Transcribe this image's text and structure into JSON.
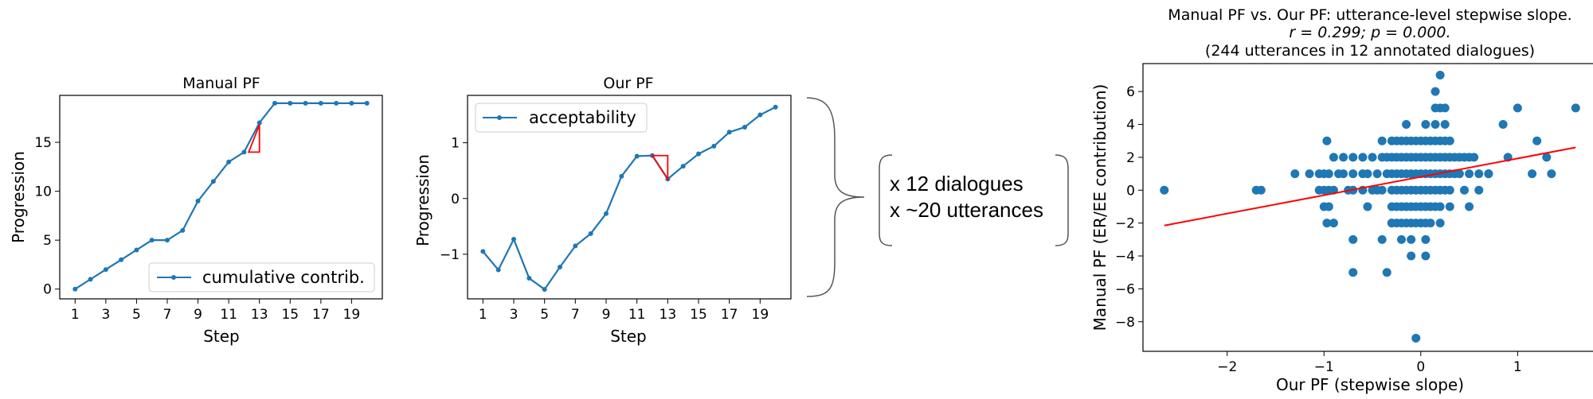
{
  "colors": {
    "series": "#1f77b4",
    "trend": "#ff0000",
    "axis": "#000000",
    "brace": "#555555"
  },
  "chart_data": [
    {
      "type": "line",
      "title": "Manual PF",
      "xlabel": "Step",
      "ylabel": "Progression",
      "xlim": [
        0,
        21
      ],
      "ylim": [
        -1,
        19.8
      ],
      "xticks": [
        1,
        3,
        5,
        7,
        9,
        11,
        13,
        15,
        17,
        19
      ],
      "yticks": [
        0,
        5,
        10,
        15
      ],
      "grid": false,
      "legend_position": "lower-right",
      "series": [
        {
          "name": "cumulative contrib.",
          "x": [
            1,
            2,
            3,
            4,
            5,
            6,
            7,
            8,
            9,
            10,
            11,
            12,
            13,
            14,
            15,
            16,
            17,
            18,
            19,
            20
          ],
          "values": [
            0,
            1,
            2,
            3,
            4,
            5,
            5,
            6,
            9,
            11,
            13,
            14,
            17,
            19,
            19,
            19,
            19,
            19,
            19,
            19
          ]
        }
      ],
      "annotation_triangle": [
        [
          12.3,
          14
        ],
        [
          13,
          14
        ],
        [
          13,
          16.8
        ]
      ]
    },
    {
      "type": "line",
      "title": "Our PF",
      "xlabel": "Step",
      "ylabel": "Progression",
      "xlim": [
        0,
        21
      ],
      "ylim": [
        -1.8,
        1.85
      ],
      "xticks": [
        1,
        3,
        5,
        7,
        9,
        11,
        13,
        15,
        17,
        19
      ],
      "yticks": [
        -1,
        0,
        1
      ],
      "grid": false,
      "legend_position": "upper-left",
      "series": [
        {
          "name": "acceptability",
          "x": [
            1,
            2,
            3,
            4,
            5,
            6,
            7,
            8,
            9,
            10,
            11,
            12,
            13,
            14,
            15,
            16,
            17,
            18,
            19,
            20
          ],
          "values": [
            -0.95,
            -1.28,
            -0.73,
            -1.43,
            -1.63,
            -1.23,
            -0.85,
            -0.63,
            -0.27,
            0.4,
            0.76,
            0.77,
            0.35,
            0.58,
            0.8,
            0.94,
            1.19,
            1.28,
            1.5,
            1.64
          ]
        }
      ],
      "annotation_triangle": [
        [
          12,
          0.77
        ],
        [
          13,
          0.77
        ],
        [
          13,
          0.35
        ]
      ]
    },
    {
      "type": "scatter",
      "title": "Manual PF vs. Our PF: utterance-level stepwise slope.",
      "title_stats": "r = 0.299;  p = 0.000.",
      "title_note": "(244 utterances in 12 annotated dialogues)",
      "xlabel": "Our PF (stepwise slope)",
      "ylabel": "Manual PF (ER/EE contribution)",
      "xlim": [
        -2.87,
        1.82
      ],
      "ylim": [
        -9.8,
        7.7
      ],
      "xticks": [
        -2,
        -1,
        0,
        1
      ],
      "yticks": [
        -8,
        -6,
        -4,
        -2,
        0,
        2,
        4,
        6
      ],
      "grid": false,
      "trend_line": {
        "x": [
          -2.65,
          1.6
        ],
        "y": [
          -2.15,
          2.6
        ]
      },
      "points": [
        [
          -2.65,
          0
        ],
        [
          -1.7,
          0
        ],
        [
          -1.65,
          0
        ],
        [
          -1.3,
          1
        ],
        [
          -1.15,
          1
        ],
        [
          -1.05,
          1
        ],
        [
          -1.0,
          1
        ],
        [
          -0.95,
          1
        ],
        [
          -1.0,
          0
        ],
        [
          -0.95,
          0
        ],
        [
          -0.9,
          0
        ],
        [
          -1.05,
          0
        ],
        [
          -1.0,
          -1
        ],
        [
          -0.95,
          -1
        ],
        [
          -0.97,
          -2
        ],
        [
          -0.9,
          -2
        ],
        [
          -0.97,
          3
        ],
        [
          -0.9,
          2
        ],
        [
          -0.85,
          1
        ],
        [
          -0.8,
          1
        ],
        [
          -0.7,
          1
        ],
        [
          -0.75,
          0
        ],
        [
          -0.7,
          0
        ],
        [
          -0.6,
          0
        ],
        [
          -0.5,
          0
        ],
        [
          -0.8,
          2
        ],
        [
          -0.7,
          2
        ],
        [
          -0.6,
          2
        ],
        [
          -0.5,
          2
        ],
        [
          -0.7,
          -3
        ],
        [
          -0.7,
          -5
        ],
        [
          -0.6,
          1
        ],
        [
          -0.55,
          1
        ],
        [
          -0.45,
          1
        ],
        [
          -0.35,
          1
        ],
        [
          -0.55,
          -1
        ],
        [
          -0.45,
          0
        ],
        [
          -0.4,
          0
        ],
        [
          -0.4,
          3
        ],
        [
          -0.4,
          2
        ],
        [
          -0.35,
          2
        ],
        [
          -0.3,
          2
        ],
        [
          -0.3,
          1
        ],
        [
          -0.25,
          1
        ],
        [
          -0.2,
          1
        ],
        [
          -0.15,
          1
        ],
        [
          -0.1,
          1
        ],
        [
          -0.05,
          1
        ],
        [
          0.0,
          1
        ],
        [
          0.05,
          1
        ],
        [
          0.1,
          1
        ],
        [
          0.15,
          1
        ],
        [
          0.2,
          1
        ],
        [
          0.25,
          1
        ],
        [
          0.3,
          1
        ],
        [
          0.35,
          1
        ],
        [
          0.4,
          1
        ],
        [
          0.5,
          1
        ],
        [
          0.6,
          1
        ],
        [
          0.7,
          1
        ],
        [
          -0.3,
          0
        ],
        [
          -0.25,
          0
        ],
        [
          -0.2,
          0
        ],
        [
          -0.15,
          0
        ],
        [
          -0.1,
          0
        ],
        [
          -0.05,
          0
        ],
        [
          0.0,
          0
        ],
        [
          0.05,
          0
        ],
        [
          0.1,
          0
        ],
        [
          0.15,
          0
        ],
        [
          0.2,
          0
        ],
        [
          0.25,
          0
        ],
        [
          0.3,
          0
        ],
        [
          0.45,
          0
        ],
        [
          -0.3,
          -1
        ],
        [
          -0.25,
          -1
        ],
        [
          -0.2,
          -1
        ],
        [
          -0.15,
          -1
        ],
        [
          -0.1,
          -1
        ],
        [
          -0.05,
          -1
        ],
        [
          0.0,
          -1
        ],
        [
          0.05,
          -1
        ],
        [
          0.1,
          -1
        ],
        [
          0.15,
          -1
        ],
        [
          0.2,
          -1
        ],
        [
          0.3,
          -1
        ],
        [
          -0.3,
          -2
        ],
        [
          -0.25,
          -2
        ],
        [
          -0.2,
          -2
        ],
        [
          -0.15,
          -2
        ],
        [
          -0.1,
          -2
        ],
        [
          -0.05,
          -2
        ],
        [
          0.0,
          -2
        ],
        [
          0.05,
          -2
        ],
        [
          0.1,
          -2
        ],
        [
          0.2,
          -2
        ],
        [
          -0.4,
          -3
        ],
        [
          -0.2,
          -3
        ],
        [
          -0.1,
          -3
        ],
        [
          0.05,
          -3
        ],
        [
          -0.1,
          -4
        ],
        [
          0.05,
          -4
        ],
        [
          -0.35,
          -5
        ],
        [
          -0.3,
          -2
        ],
        [
          -0.3,
          3
        ],
        [
          -0.25,
          3
        ],
        [
          -0.2,
          3
        ],
        [
          -0.15,
          3
        ],
        [
          -0.1,
          3
        ],
        [
          -0.05,
          3
        ],
        [
          0.0,
          3
        ],
        [
          0.05,
          3
        ],
        [
          0.1,
          3
        ],
        [
          0.15,
          3
        ],
        [
          0.2,
          3
        ],
        [
          0.25,
          3
        ],
        [
          0.3,
          3
        ],
        [
          -0.25,
          2
        ],
        [
          -0.2,
          2
        ],
        [
          -0.15,
          2
        ],
        [
          -0.1,
          2
        ],
        [
          -0.05,
          2
        ],
        [
          0.0,
          2
        ],
        [
          0.05,
          2
        ],
        [
          0.1,
          2
        ],
        [
          0.15,
          2
        ],
        [
          0.2,
          2
        ],
        [
          0.25,
          2
        ],
        [
          0.3,
          2
        ],
        [
          0.35,
          2
        ],
        [
          0.4,
          2
        ],
        [
          0.45,
          2
        ],
        [
          0.5,
          2
        ],
        [
          0.55,
          2
        ],
        [
          -0.15,
          4
        ],
        [
          0.05,
          4
        ],
        [
          0.15,
          4
        ],
        [
          0.25,
          4
        ],
        [
          0.15,
          5
        ],
        [
          0.2,
          5
        ],
        [
          0.25,
          5
        ],
        [
          0.15,
          6
        ],
        [
          0.2,
          7
        ],
        [
          -0.05,
          -9
        ],
        [
          0.5,
          -1
        ],
        [
          0.6,
          0
        ],
        [
          0.7,
          1
        ],
        [
          0.85,
          4
        ],
        [
          0.9,
          2
        ],
        [
          1.0,
          5
        ],
        [
          1.15,
          1
        ],
        [
          1.2,
          3
        ],
        [
          1.3,
          2
        ],
        [
          1.35,
          1
        ],
        [
          1.6,
          5
        ]
      ]
    }
  ],
  "brace_annotation": {
    "line1": "x 12 dialogues",
    "line2": "x ~20 utterances"
  }
}
